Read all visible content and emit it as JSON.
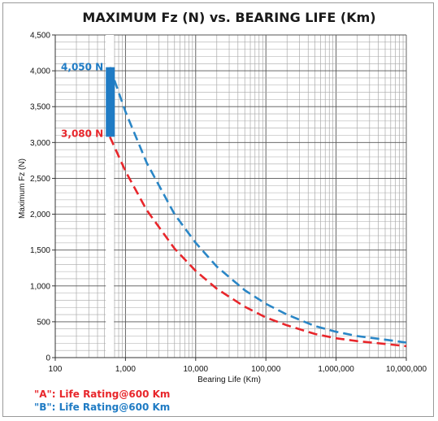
{
  "chart_data": {
    "type": "line",
    "title": "MAXIMUM Fz (N) vs. BEARING LIFE (Km)",
    "xlabel": "Bearing Life (Km)",
    "ylabel": "Maximum Fz (N)",
    "x_scale": "log",
    "xlim": [
      100,
      10000000
    ],
    "ylim": [
      0,
      4500
    ],
    "x_ticks": [
      100,
      1000,
      10000,
      100000,
      1000000,
      10000000
    ],
    "x_tick_labels": [
      "100",
      "1,000",
      "10,000",
      "100,000",
      "1,000,000",
      "10,000,000"
    ],
    "y_ticks": [
      0,
      500,
      1000,
      1500,
      2000,
      2500,
      3000,
      3500,
      4000,
      4500
    ],
    "y_tick_labels": [
      "0",
      "500",
      "1,000",
      "1,500",
      "2,000",
      "2,500",
      "3,000",
      "3,500",
      "4,000",
      "4,500"
    ],
    "grid": true,
    "highlight_x": 600,
    "series": [
      {
        "color": "#e8262b",
        "dash": true,
        "x": [
          600,
          1000,
          2000,
          5000,
          10000,
          20000,
          50000,
          100000,
          200000,
          500000,
          1000000,
          2000000,
          5000000,
          10000000
        ],
        "y": [
          3080,
          2600,
          2060,
          1520,
          1210,
          960,
          710,
          560,
          450,
          330,
          270,
          230,
          190,
          160
        ]
      },
      {
        "color": "#2a86c6",
        "dash": true,
        "x": [
          600,
          1000,
          2000,
          5000,
          10000,
          20000,
          50000,
          100000,
          200000,
          500000,
          1000000,
          2000000,
          5000000,
          10000000
        ],
        "y": [
          4050,
          3430,
          2720,
          2000,
          1600,
          1270,
          940,
          750,
          600,
          440,
          360,
          300,
          250,
          210
        ]
      }
    ],
    "bar": {
      "x": 600,
      "y_low": 3080,
      "y_high": 4050,
      "color": "#1f7bc4"
    },
    "annotations": [
      {
        "text": "4,050 N",
        "color": "#1f7bc4"
      },
      {
        "text": "3,080 N",
        "color": "#e8262b"
      }
    ],
    "legend": [
      {
        "text": "\"A\": Life Rating@600 Km",
        "color": "#e8262b"
      },
      {
        "text": "\"B\": Life Rating@600 Km",
        "color": "#1f7bc4"
      }
    ]
  }
}
